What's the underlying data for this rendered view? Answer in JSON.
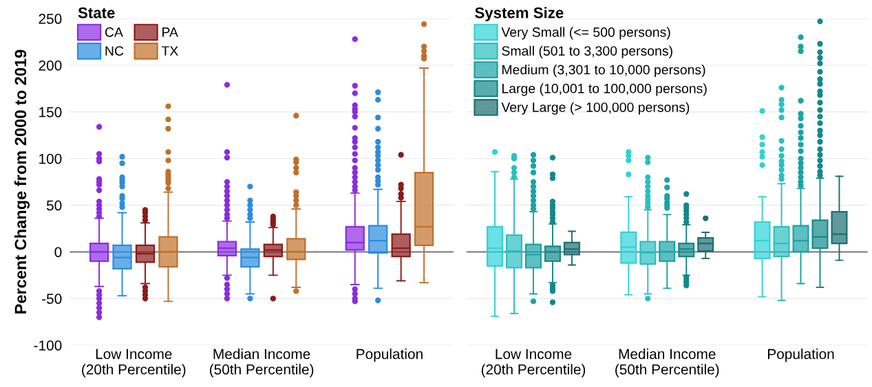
{
  "chart_data": [
    {
      "type": "box",
      "ylabel": "Percent Change from 2000 to 2019",
      "legend_title": "State",
      "legend": "top left",
      "grid": "y",
      "marker": "circle",
      "categories": [
        "Low Income\n(20th Percentile)",
        "Median Income\n(50th Percentile)",
        "Population"
      ],
      "ylim": [
        -100,
        250
      ],
      "yticks": [
        -100,
        -50,
        0,
        50,
        100,
        150,
        200,
        250
      ],
      "ref_lines": [
        {
          "axis": "y",
          "value": 0,
          "color": "#555555"
        }
      ],
      "series": [
        {
          "name": "CA",
          "color": "#8a2be2",
          "boxes": [
            {
              "low": -37,
              "q1": -10,
              "median": 0,
              "q3": 9,
              "high": 36,
              "outliers": [
                134,
                105,
                100,
                97,
                78,
                75,
                72,
                66,
                54,
                50,
                46,
                42,
                38,
                -42,
                -46,
                -50,
                -55,
                -60,
                -65,
                -70
              ]
            },
            {
              "low": -25,
              "q1": -4,
              "median": 4,
              "q3": 11,
              "high": 33,
              "outliers": [
                179,
                107,
                101,
                75,
                70,
                65,
                60,
                55,
                50,
                45,
                40,
                36,
                -28,
                -35,
                -40,
                -45,
                -50
              ]
            },
            {
              "low": -35,
              "q1": 2,
              "median": 10,
              "q3": 27,
              "high": 63,
              "outliers": [
                228,
                178,
                170,
                157,
                153,
                150,
                145,
                133,
                122,
                118,
                112,
                105,
                98,
                90,
                85,
                80,
                75,
                70,
                66,
                -40,
                -45,
                -50,
                -53
              ]
            }
          ]
        },
        {
          "name": "NC",
          "color": "#2b8ce0",
          "boxes": [
            {
              "low": -47,
              "q1": -18,
              "median": -6,
              "q3": 7,
              "high": 42,
              "outliers": [
                102,
                95,
                80,
                77,
                74,
                70,
                60,
                57,
                52,
                48
              ]
            },
            {
              "low": -45,
              "q1": -16,
              "median": -6,
              "q3": 3,
              "high": 32,
              "outliers": [
                70,
                55,
                50,
                45,
                40,
                36,
                -50
              ]
            },
            {
              "low": -39,
              "q1": -1,
              "median": 12,
              "q3": 28,
              "high": 67,
              "outliers": [
                171,
                163,
                144,
                132,
                118,
                112,
                107,
                103,
                98,
                93,
                88,
                80,
                76,
                72,
                -52
              ]
            }
          ]
        },
        {
          "name": "PA",
          "color": "#8b1a1a",
          "boxes": [
            {
              "low": -34,
              "q1": -11,
              "median": -2,
              "q3": 7,
              "high": 31,
              "outliers": [
                45,
                42,
                38,
                34,
                -38,
                -42,
                -46,
                -50
              ]
            },
            {
              "low": -25,
              "q1": -5,
              "median": 2,
              "q3": 8,
              "high": 26,
              "outliers": [
                38,
                35,
                32,
                29,
                -50
              ]
            },
            {
              "low": -31,
              "q1": -5,
              "median": 4,
              "q3": 19,
              "high": 54,
              "outliers": [
                104,
                72,
                68,
                62,
                58
              ]
            }
          ]
        },
        {
          "name": "TX",
          "color": "#c0702a",
          "boxes": [
            {
              "low": -53,
              "q1": -16,
              "median": 0,
              "q3": 16,
              "high": 64,
              "outliers": [
                156,
                142,
                132,
                107,
                98,
                86,
                83,
                80,
                77,
                74,
                68
              ]
            },
            {
              "low": -38,
              "q1": -8,
              "median": 0,
              "q3": 14,
              "high": 46,
              "outliers": [
                146,
                99,
                96,
                90,
                85,
                64,
                60,
                55,
                50,
                -42
              ]
            },
            {
              "low": -33,
              "q1": 7,
              "median": 27,
              "q3": 85,
              "high": 197,
              "outliers": [
                244,
                220,
                215,
                210,
                207
              ]
            }
          ]
        }
      ]
    },
    {
      "type": "box",
      "legend_title": "System Size",
      "legend": "top left",
      "grid": "y",
      "marker": "circle",
      "tick_labels": "x",
      "categories": [
        "Low Income\n(20th Percentile)",
        "Median Income\n(50th Percentile)",
        "Population"
      ],
      "ylim": [
        -100,
        250
      ],
      "yticks": [
        -100,
        -50,
        0,
        50,
        100,
        150,
        200,
        250
      ],
      "ref_lines": [
        {
          "axis": "y",
          "value": 0,
          "color": "#555555"
        }
      ],
      "series": [
        {
          "name": "Very Small (<= 500 persons)",
          "color": "#2ed3d8",
          "boxes": [
            {
              "low": -69,
              "q1": -15,
              "median": 4,
              "q3": 27,
              "high": 86,
              "outliers": [
                107
              ]
            },
            {
              "low": -46,
              "q1": -12,
              "median": 5,
              "q3": 21,
              "high": 59,
              "outliers": [
                107,
                103,
                98,
                83
              ]
            },
            {
              "low": -48,
              "q1": -7,
              "median": 12,
              "q3": 32,
              "high": 59,
              "outliers": [
                151,
                123,
                115,
                107,
                102,
                93
              ]
            }
          ]
        },
        {
          "name": "Small (501 to 3,300 persons)",
          "color": "#2bbfc0",
          "boxes": [
            {
              "low": -66,
              "q1": -17,
              "median": 1,
              "q3": 18,
              "high": 78,
              "outliers": [
                103,
                100,
                90,
                85,
                80
              ]
            },
            {
              "low": -45,
              "q1": -13,
              "median": -1,
              "q3": 11,
              "high": 45,
              "outliers": [
                101,
                96,
                80,
                75,
                70,
                65,
                60,
                56,
                52,
                48,
                -50
              ]
            },
            {
              "low": -52,
              "q1": -5,
              "median": 9,
              "q3": 27,
              "high": 73,
              "outliers": [
                176,
                163,
                158,
                152,
                144,
                119,
                110,
                103,
                97,
                93,
                88,
                82,
                78
              ]
            }
          ]
        },
        {
          "name": "Medium (3,301 to 10,000 persons)",
          "color": "#1aa3a6",
          "boxes": [
            {
              "low": -45,
              "q1": -17,
              "median": -3,
              "q3": 8,
              "high": 43,
              "outliers": [
                104,
                98,
                92,
                85,
                75,
                70,
                65,
                60,
                55,
                50,
                46,
                -53
              ]
            },
            {
              "low": -39,
              "q1": -10,
              "median": 0,
              "q3": 11,
              "high": 40,
              "outliers": [
                77,
                69,
                60,
                57,
                53,
                50,
                47
              ]
            },
            {
              "low": -34,
              "q1": 0,
              "median": 12,
              "q3": 28,
              "high": 68,
              "outliers": [
                230,
                220,
                215,
                162,
                148,
                143,
                135,
                128,
                122,
                115,
                108,
                100,
                95,
                90,
                85,
                80,
                75,
                71
              ]
            }
          ]
        },
        {
          "name": "Large (10,001 to 100,000 persons)",
          "color": "#12898a",
          "boxes": [
            {
              "low": -33,
              "q1": -10,
              "median": 0,
              "q3": 6,
              "high": 30,
              "outliers": [
                101,
                83,
                79,
                54,
                50,
                47,
                43,
                40,
                36,
                32,
                -36,
                -39,
                -42,
                -54
              ]
            },
            {
              "low": -25,
              "q1": -5,
              "median": 3,
              "q3": 9,
              "high": 29,
              "outliers": [
                62,
                50,
                47,
                44,
                40,
                36,
                32,
                -27,
                -30,
                -33,
                -36
              ]
            },
            {
              "low": -38,
              "q1": 4,
              "median": 16,
              "q3": 34,
              "high": 79,
              "outliers": [
                247,
                223,
                214,
                208,
                202,
                193,
                185,
                180,
                172,
                168,
                160,
                152,
                145,
                138,
                130,
                125,
                118,
                110,
                104,
                98,
                92,
                86,
                82
              ]
            }
          ]
        },
        {
          "name": "Very Large (> 100,000 persons)",
          "color": "#1b6e72",
          "boxes": [
            {
              "low": -14,
              "q1": -3,
              "median": 3,
              "q3": 10,
              "high": 22
            },
            {
              "low": -7,
              "q1": 1,
              "median": 9,
              "q3": 15,
              "high": 21,
              "outliers": [
                36
              ]
            },
            {
              "low": -9,
              "q1": 9,
              "median": 19,
              "q3": 43,
              "high": 81
            }
          ]
        }
      ]
    }
  ]
}
